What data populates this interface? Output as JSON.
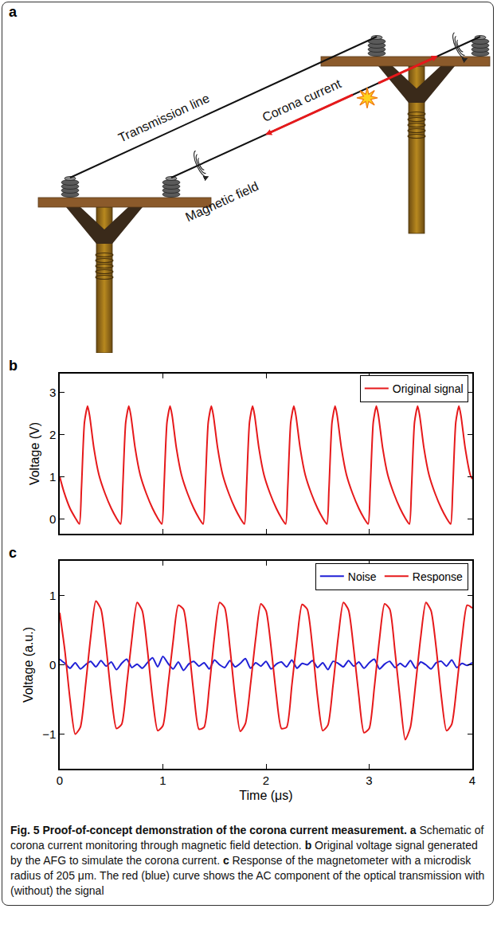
{
  "schematic": {
    "panel_label": "a",
    "labels": {
      "line": "Transmission line",
      "current": "Corona current",
      "field": "Magnetic field"
    }
  },
  "chart_data": [
    {
      "panel_label": "b",
      "type": "line",
      "x": [
        0,
        0.04,
        0.1,
        0.15,
        0.19,
        0.21,
        0.24,
        0.27,
        0.29,
        0.33,
        0.38,
        0.44,
        0.5,
        0.55,
        0.59,
        0.61,
        0.64,
        0.67,
        0.69,
        0.73,
        0.78,
        0.84,
        0.9,
        0.95,
        0.99,
        1.01,
        1.04,
        1.07,
        1.09,
        1.13,
        1.18,
        1.24,
        1.3,
        1.35,
        1.39,
        1.41,
        1.44,
        1.47,
        1.49,
        1.53,
        1.58,
        1.64,
        1.7,
        1.75,
        1.79,
        1.81,
        1.84,
        1.87,
        1.89,
        1.93,
        1.98,
        2.04,
        2.1,
        2.15,
        2.19,
        2.21,
        2.24,
        2.27,
        2.29,
        2.33,
        2.38,
        2.44,
        2.5,
        2.55,
        2.59,
        2.61,
        2.64,
        2.67,
        2.69,
        2.73,
        2.78,
        2.84,
        2.9,
        2.95,
        2.99,
        3.01,
        3.04,
        3.07,
        3.09,
        3.13,
        3.18,
        3.24,
        3.3,
        3.35,
        3.39,
        3.41,
        3.44,
        3.47,
        3.49,
        3.53,
        3.58,
        3.64,
        3.7,
        3.75,
        3.79,
        3.81,
        3.84,
        3.87,
        3.89,
        3.93,
        3.98,
        4
      ],
      "series": [
        {
          "name": "Original signal",
          "color": "#e6191b",
          "values": [
            1.0,
            0.65,
            0.25,
            0.03,
            -0.12,
            0.7,
            2.3,
            2.68,
            2.45,
            1.7,
            1.05,
            0.6,
            0.25,
            0.02,
            -0.12,
            0.7,
            2.3,
            2.68,
            2.45,
            1.7,
            1.05,
            0.6,
            0.25,
            0.02,
            -0.12,
            0.7,
            2.3,
            2.68,
            2.45,
            1.7,
            1.05,
            0.6,
            0.25,
            0.02,
            -0.12,
            0.7,
            2.3,
            2.68,
            2.45,
            1.7,
            1.05,
            0.6,
            0.25,
            0.02,
            -0.12,
            0.7,
            2.3,
            2.68,
            2.45,
            1.7,
            1.05,
            0.6,
            0.25,
            0.02,
            -0.12,
            0.7,
            2.3,
            2.68,
            2.45,
            1.7,
            1.05,
            0.6,
            0.25,
            0.02,
            -0.12,
            0.7,
            2.3,
            2.68,
            2.45,
            1.7,
            1.05,
            0.6,
            0.25,
            0.02,
            -0.12,
            0.7,
            2.3,
            2.68,
            2.45,
            1.7,
            1.05,
            0.6,
            0.25,
            0.02,
            -0.12,
            0.7,
            2.3,
            2.68,
            2.45,
            1.7,
            1.05,
            0.6,
            0.25,
            0.02,
            -0.12,
            0.7,
            2.3,
            2.68,
            2.45,
            1.7,
            1.05,
            0.95
          ]
        }
      ],
      "xlim": [
        0,
        4
      ],
      "xticks": [
        0,
        1,
        2,
        3,
        4
      ],
      "ylim": [
        -0.35,
        3.45
      ],
      "yticks": [
        0,
        1,
        2,
        3
      ],
      "y_label": "Voltage (V)",
      "tick_labels": "y",
      "legend": "upper right"
    },
    {
      "panel_label": "c",
      "type": "line",
      "x": [
        0,
        0.05,
        0.1,
        0.15,
        0.2,
        0.25,
        0.3,
        0.35,
        0.4,
        0.45,
        0.5,
        0.55,
        0.6,
        0.65,
        0.7,
        0.75,
        0.8,
        0.85,
        0.9,
        0.95,
        1,
        1.05,
        1.1,
        1.15,
        1.2,
        1.25,
        1.3,
        1.35,
        1.4,
        1.45,
        1.5,
        1.55,
        1.6,
        1.65,
        1.7,
        1.75,
        1.8,
        1.85,
        1.9,
        1.95,
        2,
        2.05,
        2.1,
        2.15,
        2.2,
        2.25,
        2.3,
        2.35,
        2.4,
        2.45,
        2.5,
        2.55,
        2.6,
        2.65,
        2.7,
        2.75,
        2.8,
        2.85,
        2.9,
        2.95,
        3,
        3.05,
        3.1,
        3.15,
        3.2,
        3.25,
        3.3,
        3.35,
        3.4,
        3.45,
        3.5,
        3.55,
        3.6,
        3.65,
        3.7,
        3.75,
        3.8,
        3.85,
        3.9,
        3.95,
        4
      ],
      "series": [
        {
          "name": "Noise",
          "color": "#1f1fd6",
          "values": [
            0.08,
            0.02,
            -0.05,
            0.03,
            -0.06,
            0.0,
            0.05,
            -0.03,
            0.06,
            -0.02,
            0.04,
            -0.07,
            0.02,
            0.08,
            -0.04,
            0.01,
            -0.05,
            0.03,
            0.1,
            -0.03,
            0.12,
            0.02,
            -0.06,
            0.04,
            -0.08,
            0.01,
            0.05,
            -0.02,
            0.03,
            -0.06,
            0.07,
            0.0,
            -0.04,
            0.06,
            -0.03,
            0.02,
            0.09,
            -0.05,
            0.03,
            -0.02,
            0.05,
            -0.06,
            0.01,
            0.04,
            -0.03,
            0.07,
            -0.05,
            0.02,
            0.0,
            0.06,
            -0.04,
            0.03,
            -0.07,
            0.05,
            0.02,
            -0.03,
            0.06,
            -0.02,
            0.04,
            -0.05,
            0.03,
            0.08,
            -0.06,
            0.01,
            0.05,
            -0.04,
            0.02,
            -0.03,
            0.06,
            -0.05,
            0.04,
            0.0,
            -0.06,
            0.03,
            0.05,
            -0.02,
            0.07,
            -0.04,
            0.02,
            -0.01,
            0.03
          ]
        },
        {
          "name": "Response",
          "color": "#e6191b",
          "values": [
            0.75,
            0.2,
            -0.5,
            -1.0,
            -0.9,
            -0.3,
            0.4,
            0.92,
            0.8,
            0.25,
            -0.45,
            -0.92,
            -0.86,
            -0.28,
            0.38,
            0.9,
            0.78,
            0.22,
            -0.48,
            -0.95,
            -0.88,
            -0.3,
            0.35,
            0.86,
            0.8,
            0.28,
            -0.42,
            -0.93,
            -0.9,
            -0.32,
            0.4,
            0.9,
            0.82,
            0.25,
            -0.46,
            -0.96,
            -0.85,
            -0.28,
            0.38,
            0.88,
            0.78,
            0.24,
            -0.44,
            -0.92,
            -0.9,
            -0.3,
            0.36,
            0.87,
            0.8,
            0.26,
            -0.47,
            -0.95,
            -0.87,
            -0.29,
            0.4,
            0.9,
            0.79,
            0.23,
            -0.45,
            -0.98,
            -0.92,
            -0.33,
            0.37,
            0.88,
            0.8,
            0.2,
            -0.5,
            -1.08,
            -0.9,
            -0.28,
            0.4,
            0.9,
            0.78,
            0.24,
            -0.46,
            -0.95,
            -0.86,
            -0.3,
            0.38,
            0.86,
            0.82
          ]
        }
      ],
      "xlim": [
        0,
        4
      ],
      "xticks": [
        0,
        1,
        2,
        3,
        4
      ],
      "ylim": [
        -1.5,
        1.5
      ],
      "yticks": [
        {
          "value": -1,
          "label": "−1"
        },
        0,
        1
      ],
      "x_label": "Time (μs)",
      "y_label": "Voltage (a.u.)",
      "legend": "upper right"
    }
  ],
  "caption": {
    "label": "Fig. 5",
    "title": "Proof-of-concept demonstration of the corona current measurement.",
    "parts": [
      {
        "letter": "a",
        "text": "Schematic of corona current monitoring through magnetic field detection."
      },
      {
        "letter": "b",
        "text": "Original voltage signal generated by the AFG to simulate the corona current."
      },
      {
        "letter": "c",
        "text": "Response of the magnetometer with a microdisk radius of 205 μm. The red (blue) curve shows the AC component of the optical transmission with (without) the signal"
      }
    ]
  }
}
